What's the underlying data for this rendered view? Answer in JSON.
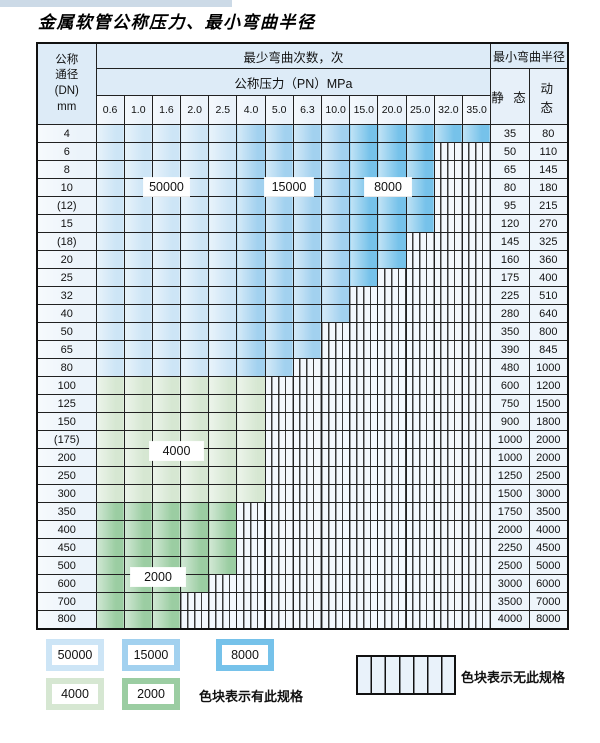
{
  "page": {
    "title": "金属软管公称压力、最小弯曲半径"
  },
  "colors": {
    "c50000": "#cde5f6",
    "c15000": "#a2d1ef",
    "c8000": "#76c2ea",
    "c4000": "#d6e7d2",
    "c2000": "#9bcda2"
  },
  "table": {
    "header": {
      "dn_lines": [
        "公称",
        "通径",
        "(DN)",
        "mm"
      ],
      "bend_cycles": "最少弯曲次数，次",
      "min_bend_radius": "最小弯曲半径",
      "pressure": "公称压力（PN）MPa",
      "static_label": "静 态",
      "dynamic_label": "动 态",
      "pressures": [
        "0.6",
        "1.0",
        "1.6",
        "2.0",
        "2.5",
        "4.0",
        "5.0",
        "6.3",
        "10.0",
        "15.0",
        "20.0",
        "25.0",
        "32.0",
        "35.0"
      ]
    },
    "rows": [
      {
        "dn": "4",
        "colored": 14,
        "zone": "blue",
        "static": "35",
        "dynamic": "80"
      },
      {
        "dn": "6",
        "colored": 12,
        "zone": "blue",
        "static": "50",
        "dynamic": "110"
      },
      {
        "dn": "8",
        "colored": 12,
        "zone": "blue",
        "static": "65",
        "dynamic": "145"
      },
      {
        "dn": "10",
        "colored": 12,
        "zone": "blue",
        "static": "80",
        "dynamic": "180"
      },
      {
        "dn": "(12)",
        "colored": 12,
        "zone": "blue",
        "static": "95",
        "dynamic": "215"
      },
      {
        "dn": "15",
        "colored": 12,
        "zone": "blue",
        "static": "120",
        "dynamic": "270"
      },
      {
        "dn": "(18)",
        "colored": 11,
        "zone": "blue",
        "static": "145",
        "dynamic": "325"
      },
      {
        "dn": "20",
        "colored": 11,
        "zone": "blue",
        "static": "160",
        "dynamic": "360"
      },
      {
        "dn": "25",
        "colored": 10,
        "zone": "blue",
        "static": "175",
        "dynamic": "400"
      },
      {
        "dn": "32",
        "colored": 9,
        "zone": "blue",
        "static": "225",
        "dynamic": "510"
      },
      {
        "dn": "40",
        "colored": 9,
        "zone": "blue",
        "static": "280",
        "dynamic": "640"
      },
      {
        "dn": "50",
        "colored": 8,
        "zone": "blue",
        "static": "350",
        "dynamic": "800"
      },
      {
        "dn": "65",
        "colored": 8,
        "zone": "blue",
        "static": "390",
        "dynamic": "845"
      },
      {
        "dn": "80",
        "colored": 7,
        "zone": "blue",
        "static": "480",
        "dynamic": "1000"
      },
      {
        "dn": "100",
        "colored": 6,
        "zone": "g4",
        "static": "600",
        "dynamic": "1200"
      },
      {
        "dn": "125",
        "colored": 6,
        "zone": "g4",
        "static": "750",
        "dynamic": "1500"
      },
      {
        "dn": "150",
        "colored": 6,
        "zone": "g4",
        "static": "900",
        "dynamic": "1800"
      },
      {
        "dn": "(175)",
        "colored": 6,
        "zone": "g4",
        "static": "1000",
        "dynamic": "2000"
      },
      {
        "dn": "200",
        "colored": 6,
        "zone": "g4",
        "static": "1000",
        "dynamic": "2000"
      },
      {
        "dn": "250",
        "colored": 6,
        "zone": "g4",
        "static": "1250",
        "dynamic": "2500"
      },
      {
        "dn": "300",
        "colored": 6,
        "zone": "g4",
        "static": "1500",
        "dynamic": "3000"
      },
      {
        "dn": "350",
        "colored": 5,
        "zone": "g2",
        "static": "1750",
        "dynamic": "3500"
      },
      {
        "dn": "400",
        "colored": 5,
        "zone": "g2",
        "static": "2000",
        "dynamic": "4000"
      },
      {
        "dn": "450",
        "colored": 5,
        "zone": "g2",
        "static": "2250",
        "dynamic": "4500"
      },
      {
        "dn": "500",
        "colored": 5,
        "zone": "g2",
        "static": "2500",
        "dynamic": "5000"
      },
      {
        "dn": "600",
        "colored": 4,
        "zone": "g2",
        "static": "3000",
        "dynamic": "6000"
      },
      {
        "dn": "700",
        "colored": 3,
        "zone": "g2",
        "static": "3500",
        "dynamic": "7000"
      },
      {
        "dn": "800",
        "colored": 3,
        "zone": "g2",
        "static": "4000",
        "dynamic": "8000"
      }
    ]
  },
  "overlays": [
    {
      "label": "50000"
    },
    {
      "label": "15000"
    },
    {
      "label": "8000"
    },
    {
      "label": "4000"
    },
    {
      "label": "2000"
    }
  ],
  "legend": {
    "swatches": [
      {
        "label": "50000",
        "color_key": "c50000"
      },
      {
        "label": "15000",
        "color_key": "c15000"
      },
      {
        "label": "8000",
        "color_key": "c8000"
      },
      {
        "label": "4000",
        "color_key": "c4000"
      },
      {
        "label": "2000",
        "color_key": "c2000"
      }
    ],
    "has_spec_text": "色块表示有此规格",
    "no_spec_text": "色块表示无此规格"
  }
}
